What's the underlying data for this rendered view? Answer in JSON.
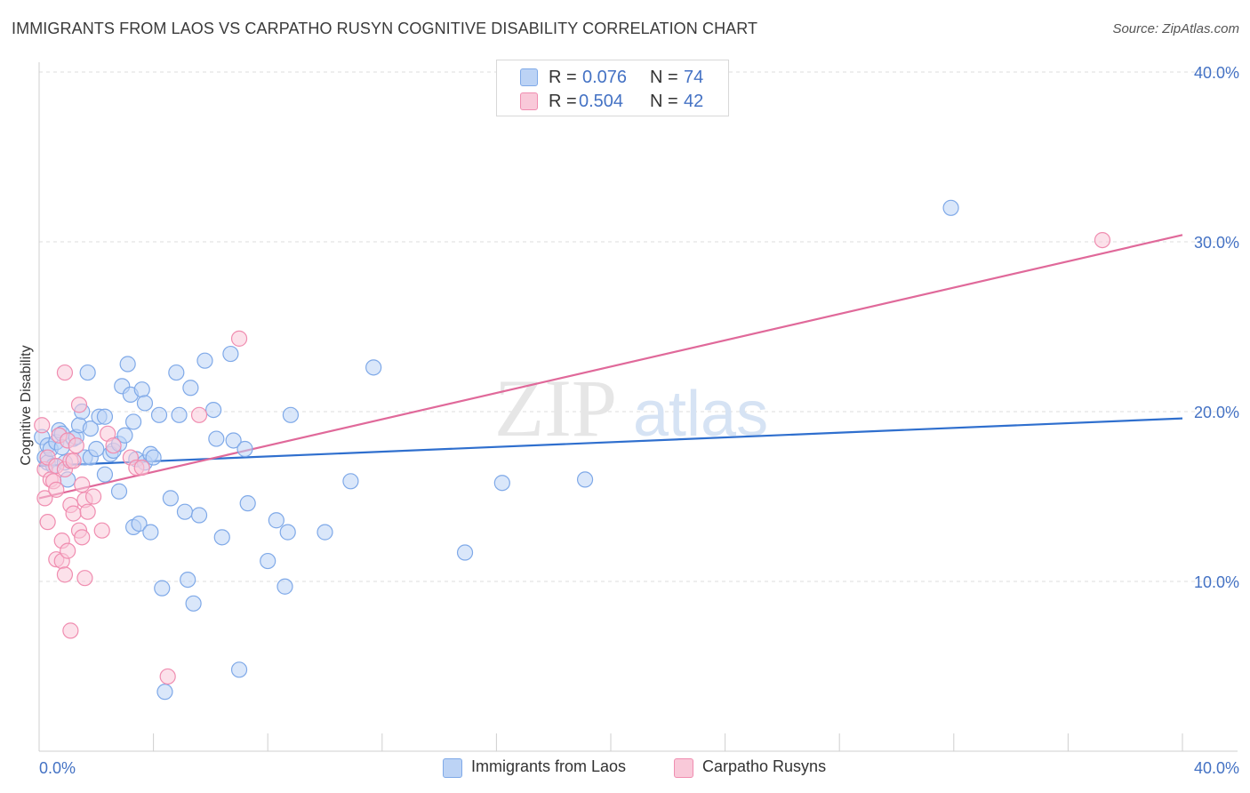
{
  "title": "IMMIGRANTS FROM LAOS VS CARPATHO RUSYN COGNITIVE DISABILITY CORRELATION CHART",
  "source": "Source: ZipAtlas.com",
  "watermark": {
    "zip": "ZIP",
    "atlas": "atlas"
  },
  "legend_top": {
    "rows": [
      {
        "r_label": "R =",
        "r_value": "0.076",
        "n_label": "N =",
        "n_value": "74",
        "color": "#7fa9e8",
        "fill": "#bcd3f5"
      },
      {
        "r_label": "R =",
        "r_value": "0.504",
        "n_label": "N =",
        "n_value": "42",
        "color": "#f08db0",
        "fill": "#f9c9d9"
      }
    ]
  },
  "legend_bottom": [
    {
      "label": "Immigrants from Laos",
      "fill": "#bcd3f5",
      "stroke": "#7fa9e8"
    },
    {
      "label": "Carpatho Rusyns",
      "fill": "#f9c9d9",
      "stroke": "#f08db0"
    }
  ],
  "chart_data": {
    "type": "scatter",
    "title": "IMMIGRANTS FROM LAOS VS CARPATHO RUSYN COGNITIVE DISABILITY CORRELATION CHART",
    "xlabel": "",
    "ylabel": "Cognitive Disability",
    "xlim": [
      0,
      40
    ],
    "ylim": [
      1.5,
      42
    ],
    "x_tick_labels": [
      "0.0%",
      "40.0%"
    ],
    "y_ticks": [
      10,
      20,
      30,
      40
    ],
    "y_tick_labels": [
      "10.0%",
      "20.0%",
      "30.0%",
      "40.0%"
    ],
    "grid": "horizontal dashed",
    "legend_placement": "top-center and bottom-center",
    "series": [
      {
        "name": "Immigrants from Laos",
        "color": "#7fa9e8",
        "line_color": "#2f6fce",
        "trend": {
          "x": [
            0,
            40
          ],
          "y": [
            16.8,
            19.6
          ]
        },
        "points": [
          [
            0.1,
            18.5
          ],
          [
            0.2,
            17.3
          ],
          [
            0.3,
            17.0
          ],
          [
            0.3,
            18.0
          ],
          [
            0.4,
            17.8
          ],
          [
            0.5,
            16.8
          ],
          [
            0.6,
            18.2
          ],
          [
            0.7,
            18.9
          ],
          [
            0.8,
            18.7
          ],
          [
            0.8,
            17.9
          ],
          [
            0.9,
            17.0
          ],
          [
            1.0,
            16.0
          ],
          [
            1.2,
            18.4
          ],
          [
            1.3,
            18.5
          ],
          [
            1.4,
            19.2
          ],
          [
            1.5,
            20.0
          ],
          [
            1.6,
            17.3
          ],
          [
            1.7,
            22.3
          ],
          [
            1.8,
            19.0
          ],
          [
            1.8,
            17.3
          ],
          [
            2.0,
            17.8
          ],
          [
            2.1,
            19.7
          ],
          [
            2.3,
            16.3
          ],
          [
            2.3,
            19.7
          ],
          [
            2.5,
            17.5
          ],
          [
            2.6,
            17.7
          ],
          [
            2.8,
            15.3
          ],
          [
            2.8,
            18.1
          ],
          [
            2.9,
            21.5
          ],
          [
            3.0,
            18.6
          ],
          [
            3.1,
            22.8
          ],
          [
            3.2,
            21.0
          ],
          [
            3.3,
            19.4
          ],
          [
            3.3,
            13.2
          ],
          [
            3.4,
            17.2
          ],
          [
            3.5,
            13.4
          ],
          [
            3.6,
            21.3
          ],
          [
            3.7,
            20.5
          ],
          [
            3.7,
            17.0
          ],
          [
            3.9,
            17.5
          ],
          [
            3.9,
            12.9
          ],
          [
            4.0,
            17.3
          ],
          [
            4.2,
            19.8
          ],
          [
            4.3,
            9.6
          ],
          [
            4.4,
            3.5
          ],
          [
            4.6,
            14.9
          ],
          [
            4.8,
            22.3
          ],
          [
            4.9,
            19.8
          ],
          [
            5.1,
            14.1
          ],
          [
            5.2,
            10.1
          ],
          [
            5.3,
            21.4
          ],
          [
            5.4,
            8.7
          ],
          [
            5.6,
            13.9
          ],
          [
            5.8,
            23.0
          ],
          [
            6.1,
            20.1
          ],
          [
            6.2,
            18.4
          ],
          [
            6.4,
            12.6
          ],
          [
            6.7,
            23.4
          ],
          [
            6.8,
            18.3
          ],
          [
            7.0,
            4.8
          ],
          [
            7.2,
            17.8
          ],
          [
            7.3,
            14.6
          ],
          [
            8.0,
            11.2
          ],
          [
            8.3,
            13.6
          ],
          [
            8.6,
            9.7
          ],
          [
            8.7,
            12.9
          ],
          [
            8.8,
            19.8
          ],
          [
            10.0,
            12.9
          ],
          [
            10.9,
            15.9
          ],
          [
            11.7,
            22.6
          ],
          [
            14.9,
            11.7
          ],
          [
            16.2,
            15.8
          ],
          [
            19.1,
            16.0
          ],
          [
            31.9,
            32.0
          ]
        ]
      },
      {
        "name": "Carpatho Rusyns",
        "color": "#f08db0",
        "line_color": "#e0699a",
        "trend": {
          "x": [
            0,
            40
          ],
          "y": [
            14.9,
            30.4
          ]
        },
        "points": [
          [
            0.1,
            19.2
          ],
          [
            0.2,
            16.6
          ],
          [
            0.2,
            14.9
          ],
          [
            0.3,
            13.5
          ],
          [
            0.3,
            17.3
          ],
          [
            0.4,
            16.0
          ],
          [
            0.5,
            15.9
          ],
          [
            0.6,
            11.3
          ],
          [
            0.6,
            15.4
          ],
          [
            0.6,
            16.8
          ],
          [
            0.7,
            18.6
          ],
          [
            0.8,
            12.4
          ],
          [
            0.8,
            11.2
          ],
          [
            0.9,
            16.6
          ],
          [
            0.9,
            10.4
          ],
          [
            0.9,
            22.3
          ],
          [
            1.0,
            18.3
          ],
          [
            1.0,
            11.8
          ],
          [
            1.1,
            17.1
          ],
          [
            1.1,
            14.5
          ],
          [
            1.1,
            7.1
          ],
          [
            1.2,
            17.1
          ],
          [
            1.2,
            14.0
          ],
          [
            1.3,
            18.0
          ],
          [
            1.4,
            13.0
          ],
          [
            1.4,
            20.4
          ],
          [
            1.5,
            12.6
          ],
          [
            1.5,
            15.7
          ],
          [
            1.6,
            14.8
          ],
          [
            1.6,
            10.2
          ],
          [
            1.7,
            14.1
          ],
          [
            1.9,
            15.0
          ],
          [
            2.2,
            13.0
          ],
          [
            2.4,
            18.7
          ],
          [
            2.6,
            18.0
          ],
          [
            3.2,
            17.3
          ],
          [
            3.4,
            16.7
          ],
          [
            3.6,
            16.7
          ],
          [
            4.5,
            4.4
          ],
          [
            5.6,
            19.8
          ],
          [
            7.0,
            24.3
          ],
          [
            37.2,
            30.1
          ]
        ]
      }
    ]
  }
}
